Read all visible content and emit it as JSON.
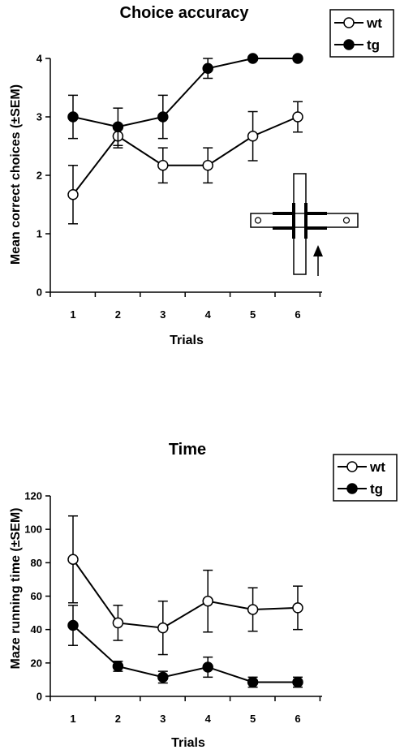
{
  "chart_data": [
    {
      "type": "line",
      "title": "Choice accuracy",
      "xlabel": "Trials",
      "ylabel": "Mean correct choices (±SEM)",
      "categories": [
        "1",
        "2",
        "3",
        "4",
        "5",
        "6"
      ],
      "ylim": [
        0,
        4
      ],
      "yticks": [
        "0",
        "1",
        "2",
        "3",
        "4"
      ],
      "grid": false,
      "legend_position": "top-right",
      "series": [
        {
          "name": "wt",
          "marker": "open-circle",
          "values": [
            1.67,
            2.67,
            2.17,
            2.17,
            2.67,
            3.0
          ],
          "error": [
            0.5,
            0.2,
            0.3,
            0.3,
            0.42,
            0.26
          ]
        },
        {
          "name": "tg",
          "marker": "filled-circle",
          "values": [
            3.0,
            2.83,
            3.0,
            3.83,
            4.0,
            4.0
          ],
          "error": [
            0.37,
            0.32,
            0.37,
            0.17,
            0.0,
            0.0
          ]
        }
      ],
      "inset": "cross-maze-icon"
    },
    {
      "type": "line",
      "title": "Time",
      "xlabel": "Trials",
      "ylabel": "Maze running time (±SEM)",
      "categories": [
        "1",
        "2",
        "3",
        "4",
        "5",
        "6"
      ],
      "ylim": [
        0,
        120
      ],
      "yticks": [
        "0",
        "20",
        "40",
        "60",
        "80",
        "100",
        "120"
      ],
      "grid": false,
      "legend_position": "top-right",
      "series": [
        {
          "name": "wt",
          "marker": "open-circle",
          "values": [
            82,
            44,
            41,
            57,
            52,
            53
          ],
          "error": [
            26,
            10.5,
            16,
            18.5,
            13,
            13
          ]
        },
        {
          "name": "tg",
          "marker": "filled-circle",
          "values": [
            42.5,
            18,
            11.5,
            17.5,
            8.5,
            8.5
          ],
          "error": [
            12,
            3,
            3.5,
            6,
            3,
            3
          ]
        }
      ]
    }
  ]
}
